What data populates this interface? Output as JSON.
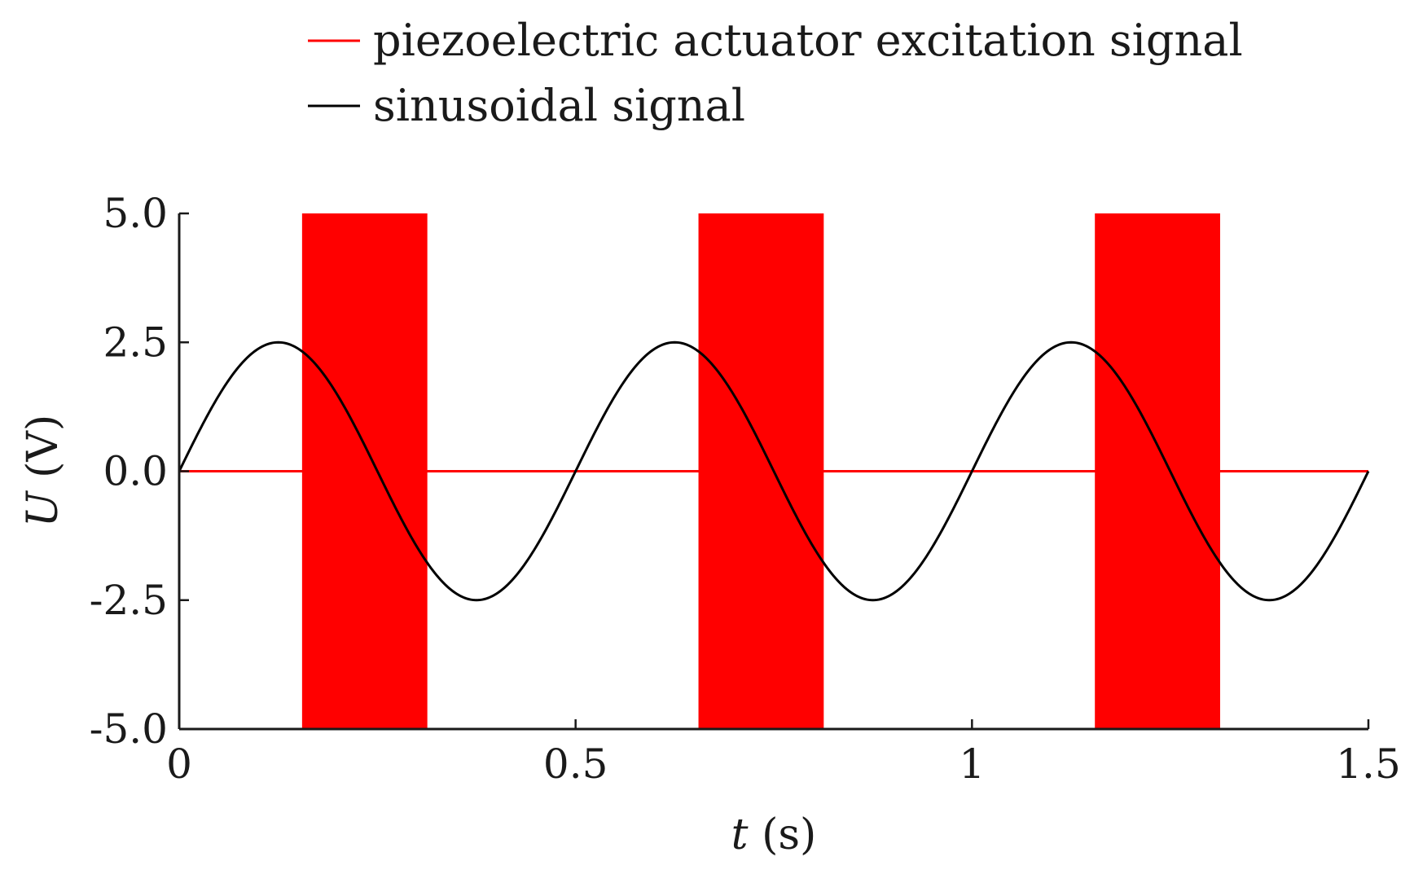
{
  "chart_data": {
    "type": "line",
    "xlabel": {
      "symbol": "t",
      "unit": "(s)"
    },
    "ylabel": {
      "symbol": "U",
      "unit": "(V)"
    },
    "xlim": [
      0,
      1.5
    ],
    "ylim": [
      -5.0,
      5.0
    ],
    "x_ticks": [
      {
        "value": 0,
        "label": "0"
      },
      {
        "value": 0.5,
        "label": "0.5"
      },
      {
        "value": 1,
        "label": "1"
      },
      {
        "value": 1.5,
        "label": "1.5"
      }
    ],
    "y_ticks": [
      {
        "value": 5.0,
        "label": "5.0"
      },
      {
        "value": 2.5,
        "label": "2.5"
      },
      {
        "value": 0.0,
        "label": "0.0"
      },
      {
        "value": -2.5,
        "label": "-2.5"
      },
      {
        "value": -5.0,
        "label": "-5.0"
      }
    ],
    "grid": false,
    "legend_position": "top",
    "series": [
      {
        "name": "piezoelectric actuator excitation signal",
        "color": "#ff0000",
        "kind": "burst",
        "baseline": 0.0,
        "amplitude": [
          -5.0,
          5.0
        ],
        "bursts": [
          [
            0.155,
            0.313
          ],
          [
            0.655,
            0.813
          ],
          [
            1.155,
            1.313
          ]
        ]
      },
      {
        "name": "sinusoidal signal",
        "color": "#000000",
        "kind": "sine",
        "amplitude": 2.5,
        "frequency": 2,
        "x_range": [
          0,
          1.5
        ]
      }
    ]
  }
}
